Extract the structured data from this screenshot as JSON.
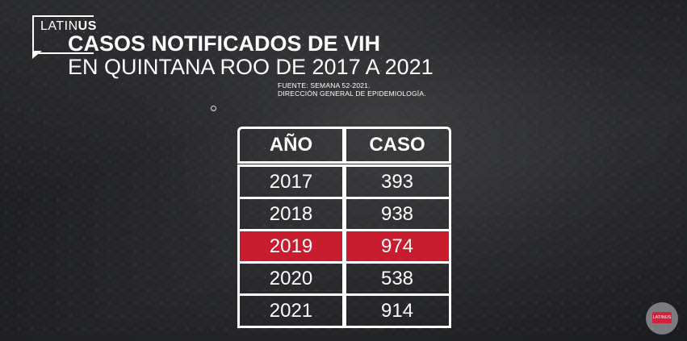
{
  "logo": {
    "part1": "LATIN",
    "part2": "US"
  },
  "title": {
    "line1": "CASOS NOTIFICADOS  DE VIH",
    "line2": "EN QUINTANA ROO DE 2017 A 2021"
  },
  "source": {
    "line1": "FUENTE: SEMANA 52-2021.",
    "line2": "DIRECCIÓN GENERAL DE EPIDEMIOLOGÍA."
  },
  "badge": {
    "text": "LATINUS"
  },
  "colors": {
    "highlight": "#c81d2f",
    "text": "#ffffff"
  },
  "chart_data": {
    "type": "table",
    "columns": [
      "AÑO",
      "CASO"
    ],
    "rows": [
      [
        "2017",
        "393"
      ],
      [
        "2018",
        "938"
      ],
      [
        "2019",
        "974"
      ],
      [
        "2020",
        "538"
      ],
      [
        "2021",
        "914"
      ]
    ],
    "highlighted_row": 2
  }
}
